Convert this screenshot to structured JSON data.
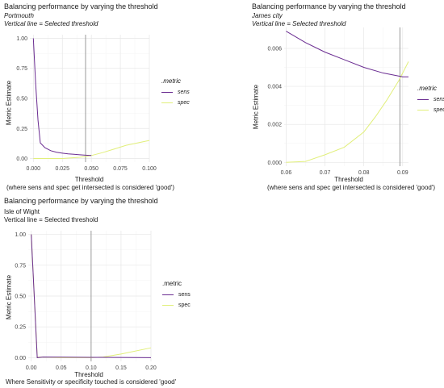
{
  "chart_data": [
    {
      "type": "line",
      "title": "Balancing performance by varying the threshold",
      "subtitle": "Portmouth",
      "subtitle2": "Vertical line = Selected threshold",
      "xlabel": "Threshold",
      "caption": "(where sens and spec get intersected is considered 'good')",
      "ylabel": "Metric Estimate",
      "legend_title": ".metric",
      "xlim": [
        -0.003,
        0.1
      ],
      "ylim": [
        -0.03,
        1.03
      ],
      "x_ticks": [
        0.0,
        0.025,
        0.05,
        0.075,
        0.1
      ],
      "x_tick_labels": [
        "0.000",
        "0.025",
        "0.050",
        "0.075",
        "0.100"
      ],
      "y_ticks": [
        0.0,
        0.25,
        0.5,
        0.75,
        1.0
      ],
      "y_tick_labels": [
        "0.00",
        "0.25",
        "0.50",
        "0.75",
        "1.00"
      ],
      "selected_threshold": 0.045,
      "series": [
        {
          "name": "sens",
          "color": "#6a2c91",
          "x": [
            0.0,
            0.002,
            0.004,
            0.006,
            0.01,
            0.015,
            0.02,
            0.025,
            0.03,
            0.035,
            0.04,
            0.045,
            0.05
          ],
          "y": [
            1.0,
            0.62,
            0.32,
            0.13,
            0.09,
            0.065,
            0.052,
            0.045,
            0.039,
            0.035,
            0.031,
            0.028,
            0.025
          ]
        },
        {
          "name": "spec",
          "color": "#e1ef7a",
          "x": [
            0.0,
            0.025,
            0.04,
            0.05,
            0.06,
            0.07,
            0.08,
            0.09,
            0.1
          ],
          "y": [
            0.0,
            0.0,
            0.01,
            0.025,
            0.05,
            0.08,
            0.11,
            0.13,
            0.15
          ]
        }
      ]
    },
    {
      "type": "line",
      "title": "Balancing performance by varying the threshold",
      "subtitle": "James city",
      "subtitle2": "Vertical line = Selected threshold",
      "xlabel": "Threshold",
      "caption": "(where sens and spec get intersected is considered 'good')",
      "ylabel": "Metric Estimate",
      "legend_title": ".metric",
      "xlim": [
        0.0595,
        0.0915
      ],
      "ylim": [
        -0.0002,
        0.0071
      ],
      "x_ticks": [
        0.06,
        0.07,
        0.08,
        0.09
      ],
      "x_tick_labels": [
        "0.06",
        "0.07",
        "0.08",
        "0.09"
      ],
      "y_ticks": [
        0.0,
        0.002,
        0.004,
        0.006
      ],
      "y_tick_labels": [
        "0.000",
        "0.002",
        "0.004",
        "0.006"
      ],
      "selected_threshold": 0.0893,
      "series": [
        {
          "name": "sens",
          "color": "#6a2c91",
          "x": [
            0.06,
            0.065,
            0.07,
            0.075,
            0.08,
            0.085,
            0.09,
            0.0915
          ],
          "y": [
            0.0069,
            0.0063,
            0.0058,
            0.0054,
            0.005,
            0.0047,
            0.0045,
            0.0045
          ]
        },
        {
          "name": "spec",
          "color": "#e1ef7a",
          "x": [
            0.06,
            0.065,
            0.07,
            0.075,
            0.08,
            0.083,
            0.086,
            0.089,
            0.0915
          ],
          "y": [
            0.0,
            5e-05,
            0.0004,
            0.0008,
            0.0016,
            0.0024,
            0.0033,
            0.0043,
            0.0053
          ]
        }
      ]
    },
    {
      "type": "line",
      "title": "Balancing performance by varying the threshold",
      "subtitle": "Isle of Wight",
      "subtitle2": "Vertical line = Selected threshold",
      "xlabel": "Threshold",
      "caption": "Where Sensitivity or specificity touched is considered 'good'",
      "ylabel": "Metric Estimate",
      "legend_title": ".metric",
      "xlim": [
        -0.005,
        0.2
      ],
      "ylim": [
        -0.03,
        1.03
      ],
      "x_ticks": [
        0.0,
        0.05,
        0.1,
        0.15,
        0.2
      ],
      "x_tick_labels": [
        "0.00",
        "0.05",
        "0.10",
        "0.15",
        "0.20"
      ],
      "y_ticks": [
        0.0,
        0.25,
        0.5,
        0.75,
        1.0
      ],
      "y_tick_labels": [
        "0.00",
        "0.25",
        "0.50",
        "0.75",
        "1.00"
      ],
      "selected_threshold": 0.1,
      "series": [
        {
          "name": "sens",
          "color": "#6a2c91",
          "x": [
            0.0,
            0.01,
            0.02,
            0.05,
            0.1,
            0.15,
            0.2
          ],
          "y": [
            1.0,
            0.0,
            0.005,
            0.004,
            0.003,
            0.002,
            0.0
          ]
        },
        {
          "name": "spec",
          "color": "#e1ef7a",
          "x": [
            0.0,
            0.01,
            0.05,
            0.1,
            0.12,
            0.15,
            0.2
          ],
          "y": [
            1.0,
            0.005,
            0.0,
            0.0,
            0.005,
            0.03,
            0.08
          ]
        }
      ]
    }
  ]
}
